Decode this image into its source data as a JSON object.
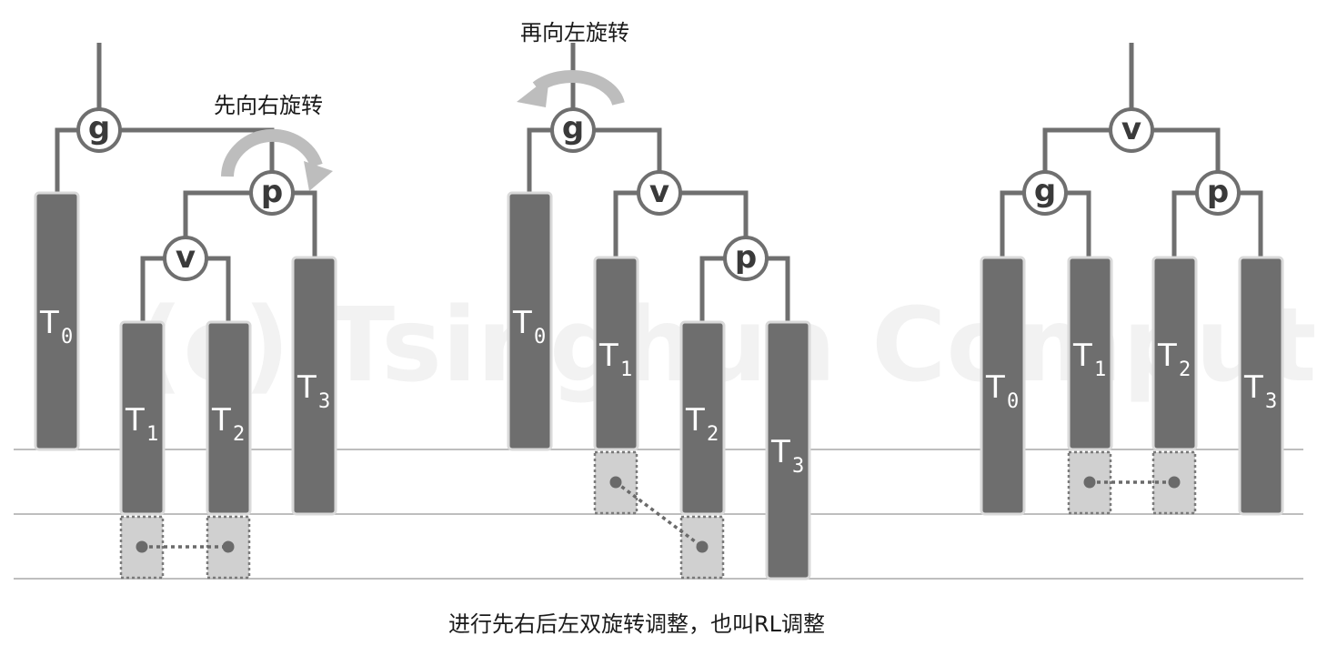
{
  "watermark": "(c) Tsinghua Computer",
  "annotations": {
    "rotate_right": "先向右旋转",
    "rotate_left": "再向左旋转"
  },
  "caption": "进行先右后左双旋转调整，也叫RL调整",
  "colors": {
    "edge": "#6f6f6f",
    "subtree": "#6e6e6e",
    "subtree_border": "#d9d9d9",
    "node_fill": "#ffffff",
    "node_stroke": "#6f6f6f",
    "arrow": "#bdbdbd",
    "patch": "#d0d0d0",
    "guide": "#a8a8a8"
  },
  "panels": [
    {
      "id": "initial",
      "nodes": [
        {
          "key": "g",
          "label": "g"
        },
        {
          "key": "p",
          "label": "p"
        },
        {
          "key": "v",
          "label": "v"
        }
      ],
      "subtrees": [
        {
          "key": "T0",
          "base": "T",
          "index": "0"
        },
        {
          "key": "T1",
          "base": "T",
          "index": "1"
        },
        {
          "key": "T2",
          "base": "T",
          "index": "2"
        },
        {
          "key": "T3",
          "base": "T",
          "index": "3"
        }
      ]
    },
    {
      "id": "after-right-rotation",
      "nodes": [
        {
          "key": "g",
          "label": "g"
        },
        {
          "key": "v",
          "label": "v"
        },
        {
          "key": "p",
          "label": "p"
        }
      ],
      "subtrees": [
        {
          "key": "T0",
          "base": "T",
          "index": "0"
        },
        {
          "key": "T1",
          "base": "T",
          "index": "1"
        },
        {
          "key": "T2",
          "base": "T",
          "index": "2"
        },
        {
          "key": "T3",
          "base": "T",
          "index": "3"
        }
      ]
    },
    {
      "id": "after-left-rotation",
      "nodes": [
        {
          "key": "v",
          "label": "v"
        },
        {
          "key": "g",
          "label": "g"
        },
        {
          "key": "p",
          "label": "p"
        }
      ],
      "subtrees": [
        {
          "key": "T0",
          "base": "T",
          "index": "0"
        },
        {
          "key": "T1",
          "base": "T",
          "index": "1"
        },
        {
          "key": "T2",
          "base": "T",
          "index": "2"
        },
        {
          "key": "T3",
          "base": "T",
          "index": "3"
        }
      ]
    }
  ]
}
